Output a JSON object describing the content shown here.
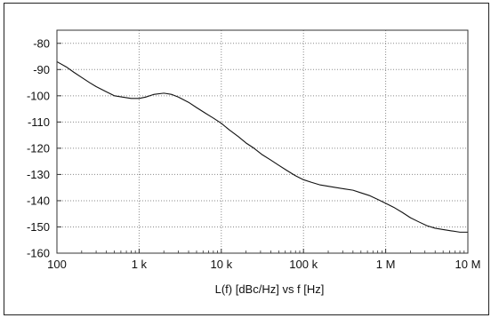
{
  "chart_data": {
    "type": "line",
    "title": "",
    "xlabel": "L(f)  [dBc/Hz] vs f [Hz]",
    "ylabel": "",
    "xscale": "log",
    "xlim": [
      100,
      10000000
    ],
    "ylim": [
      -160,
      -75
    ],
    "grid": true,
    "x_ticks": [
      {
        "value": 100,
        "label": "100"
      },
      {
        "value": 1000,
        "label": "1 k"
      },
      {
        "value": 10000,
        "label": "10 k"
      },
      {
        "value": 100000,
        "label": "100 k"
      },
      {
        "value": 1000000,
        "label": "1 M"
      },
      {
        "value": 10000000,
        "label": "10 M"
      }
    ],
    "y_ticks": [
      {
        "value": -80,
        "label": "-80"
      },
      {
        "value": -90,
        "label": "-90"
      },
      {
        "value": -100,
        "label": "-100"
      },
      {
        "value": -110,
        "label": "-110"
      },
      {
        "value": -120,
        "label": "-120"
      },
      {
        "value": -130,
        "label": "-130"
      },
      {
        "value": -140,
        "label": "-140"
      },
      {
        "value": -150,
        "label": "-150"
      },
      {
        "value": -160,
        "label": "-160"
      }
    ],
    "series": [
      {
        "color": "#111111",
        "points": [
          [
            100,
            -87
          ],
          [
            130,
            -89
          ],
          [
            160,
            -91
          ],
          [
            200,
            -93
          ],
          [
            250,
            -95
          ],
          [
            300,
            -96.5
          ],
          [
            400,
            -98.5
          ],
          [
            500,
            -100
          ],
          [
            630,
            -100.5
          ],
          [
            800,
            -101
          ],
          [
            1000,
            -101
          ],
          [
            1200,
            -100.5
          ],
          [
            1500,
            -99.5
          ],
          [
            2000,
            -99
          ],
          [
            2500,
            -99.5
          ],
          [
            3000,
            -100.5
          ],
          [
            4000,
            -102.5
          ],
          [
            5000,
            -104.5
          ],
          [
            6300,
            -106.5
          ],
          [
            8000,
            -108.5
          ],
          [
            10000,
            -110.5
          ],
          [
            12500,
            -113
          ],
          [
            16000,
            -115.5
          ],
          [
            20000,
            -118
          ],
          [
            25000,
            -120
          ],
          [
            31600,
            -122.5
          ],
          [
            40000,
            -124.5
          ],
          [
            50000,
            -126.5
          ],
          [
            63000,
            -128.5
          ],
          [
            80000,
            -130.5
          ],
          [
            100000,
            -132
          ],
          [
            125000,
            -133
          ],
          [
            160000,
            -134
          ],
          [
            200000,
            -134.5
          ],
          [
            250000,
            -135
          ],
          [
            316000,
            -135.5
          ],
          [
            400000,
            -136
          ],
          [
            500000,
            -137
          ],
          [
            630000,
            -138
          ],
          [
            800000,
            -139.5
          ],
          [
            1000000,
            -141
          ],
          [
            1250000,
            -142.5
          ],
          [
            1600000,
            -144.5
          ],
          [
            2000000,
            -146.5
          ],
          [
            2500000,
            -148
          ],
          [
            3160000,
            -149.5
          ],
          [
            4000000,
            -150.5
          ],
          [
            5000000,
            -151
          ],
          [
            6300000,
            -151.5
          ],
          [
            8000000,
            -152
          ],
          [
            10000000,
            -152
          ]
        ]
      }
    ]
  }
}
